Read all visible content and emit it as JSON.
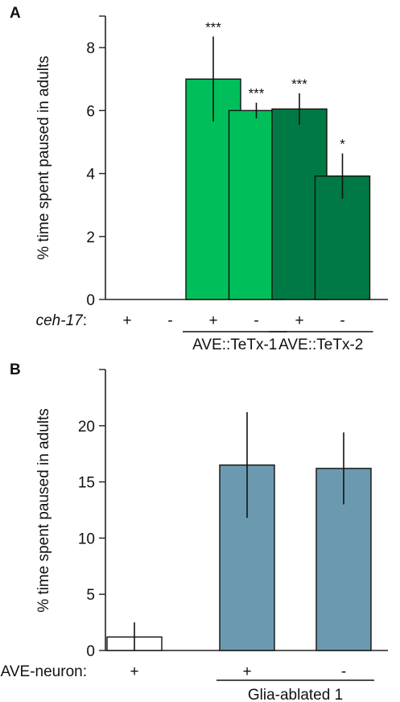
{
  "chart_data": [
    {
      "panel": "A",
      "type": "bar",
      "ylabel": "% time spent paused in adults",
      "ylim": [
        0,
        9
      ],
      "yticks": [
        0,
        2,
        4,
        6,
        8
      ],
      "row_label": "ceh-17:",
      "categories": [
        "+",
        "-",
        "+",
        "-",
        "+",
        "-"
      ],
      "values": [
        0,
        0,
        7.0,
        6.0,
        6.05,
        3.92
      ],
      "errors": [
        0,
        0,
        1.35,
        0.25,
        0.5,
        0.72
      ],
      "significance": [
        "",
        "",
        "***",
        "***",
        "***",
        "*"
      ],
      "bar_colors": [
        "#ffffff",
        "#ffffff",
        "#00bf5a",
        "#00bf5a",
        "#007a45",
        "#007a45"
      ],
      "groups": [
        {
          "label": "AVE::TeTx-1",
          "members": [
            2,
            3
          ]
        },
        {
          "label": "AVE::TeTx-2",
          "members": [
            4,
            5
          ]
        }
      ]
    },
    {
      "panel": "B",
      "type": "bar",
      "ylabel": "% time spent paused in adults",
      "ylim": [
        0,
        25
      ],
      "yticks": [
        0,
        5,
        10,
        15,
        20
      ],
      "row_label": "AVE-neuron:",
      "categories": [
        "+",
        "+",
        "-"
      ],
      "values": [
        1.2,
        16.5,
        16.2
      ],
      "errors": [
        1.3,
        4.7,
        3.2
      ],
      "significance": [
        "",
        "",
        ""
      ],
      "bar_colors": [
        "#ffffff",
        "#6b9ab0",
        "#6b9ab0"
      ],
      "groups": [
        {
          "label": "Glia-ablated 1",
          "members": [
            1,
            2
          ]
        }
      ]
    }
  ]
}
